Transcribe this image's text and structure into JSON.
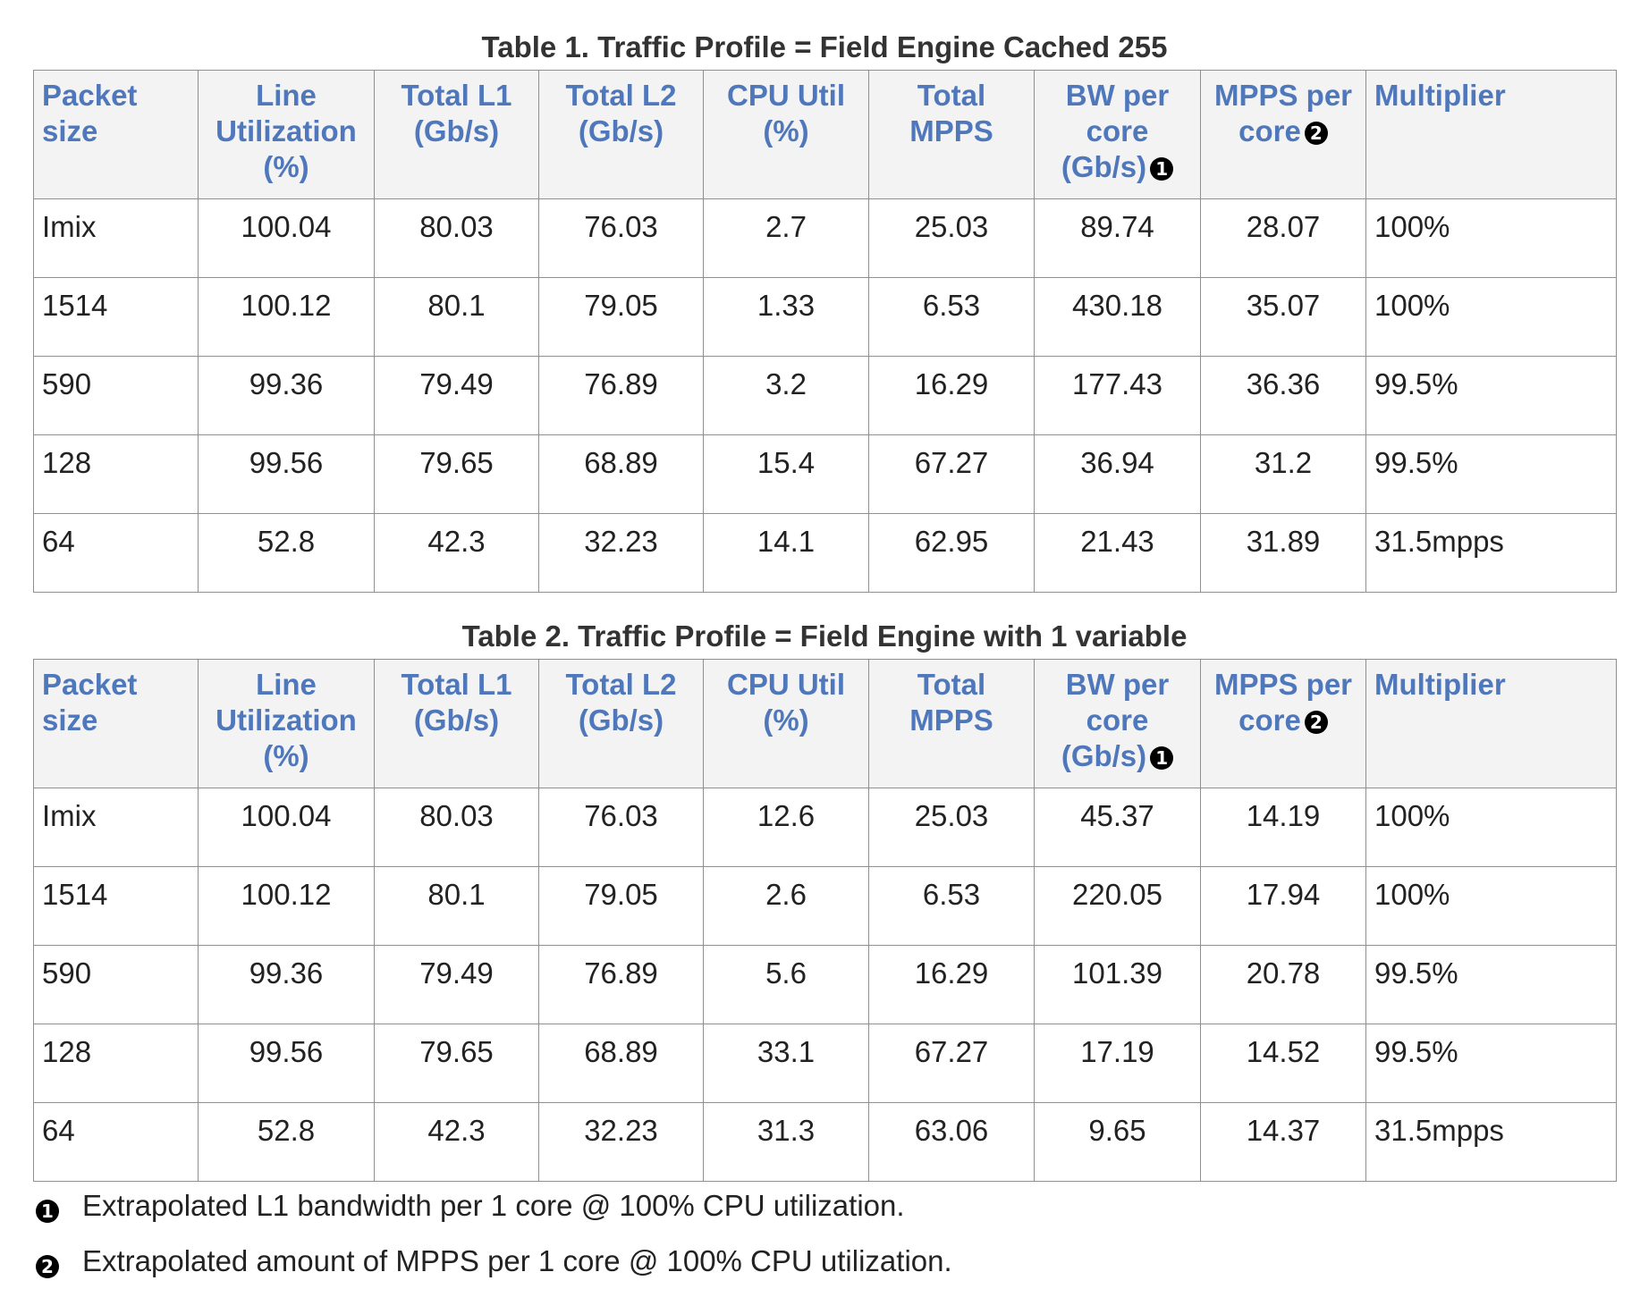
{
  "tables": [
    {
      "caption": "Table 1. Traffic Profile = Field Engine Cached 255",
      "headers": [
        {
          "text": "Packet size",
          "note": ""
        },
        {
          "text": "Line Utilization (%)",
          "note": ""
        },
        {
          "text": "Total L1 (Gb/s)",
          "note": ""
        },
        {
          "text": "Total L2 (Gb/s)",
          "note": ""
        },
        {
          "text": "CPU Util (%)",
          "note": ""
        },
        {
          "text": "Total MPPS",
          "note": ""
        },
        {
          "text": "BW per core (Gb/s)",
          "note": "1"
        },
        {
          "text": "MPPS per core",
          "note": "2"
        },
        {
          "text": "Multiplier",
          "note": ""
        }
      ],
      "rows": [
        [
          "Imix",
          "100.04",
          "80.03",
          "76.03",
          "2.7",
          "25.03",
          "89.74",
          "28.07",
          "100%"
        ],
        [
          "1514",
          "100.12",
          "80.1",
          "79.05",
          "1.33",
          "6.53",
          "430.18",
          "35.07",
          "100%"
        ],
        [
          "590",
          "99.36",
          "79.49",
          "76.89",
          "3.2",
          "16.29",
          "177.43",
          "36.36",
          "99.5%"
        ],
        [
          "128",
          "99.56",
          "79.65",
          "68.89",
          "15.4",
          "67.27",
          "36.94",
          "31.2",
          "99.5%"
        ],
        [
          "64",
          "52.8",
          "42.3",
          "32.23",
          "14.1",
          "62.95",
          "21.43",
          "31.89",
          "31.5mpps"
        ]
      ]
    },
    {
      "caption": "Table 2. Traffic Profile = Field Engine with 1 variable",
      "headers": [
        {
          "text": "Packet size",
          "note": ""
        },
        {
          "text": "Line Utilization (%)",
          "note": ""
        },
        {
          "text": "Total L1 (Gb/s)",
          "note": ""
        },
        {
          "text": "Total L2 (Gb/s)",
          "note": ""
        },
        {
          "text": "CPU Util (%)",
          "note": ""
        },
        {
          "text": "Total MPPS",
          "note": ""
        },
        {
          "text": "BW per core (Gb/s)",
          "note": "1"
        },
        {
          "text": "MPPS per core",
          "note": "2"
        },
        {
          "text": "Multiplier",
          "note": ""
        }
      ],
      "rows": [
        [
          "Imix",
          "100.04",
          "80.03",
          "76.03",
          "12.6",
          "25.03",
          "45.37",
          "14.19",
          "100%"
        ],
        [
          "1514",
          "100.12",
          "80.1",
          "79.05",
          "2.6",
          "6.53",
          "220.05",
          "17.94",
          "100%"
        ],
        [
          "590",
          "99.36",
          "79.49",
          "76.89",
          "5.6",
          "16.29",
          "101.39",
          "20.78",
          "99.5%"
        ],
        [
          "128",
          "99.56",
          "79.65",
          "68.89",
          "33.1",
          "67.27",
          "17.19",
          "14.52",
          "99.5%"
        ],
        [
          "64",
          "52.8",
          "42.3",
          "32.23",
          "31.3",
          "63.06",
          "9.65",
          "14.37",
          "31.5mpps"
        ]
      ]
    }
  ],
  "footnotes": [
    {
      "marker": "1",
      "text": "Extrapolated L1 bandwidth per 1 core @ 100% CPU utilization."
    },
    {
      "marker": "2",
      "text": "Extrapolated amount of MPPS per 1 core @ 100% CPU utilization."
    }
  ],
  "colors": {
    "header_text": "#4f77bb",
    "header_bg": "#f3f3f3",
    "border": "#8f8f8f",
    "body_text": "#222222"
  }
}
